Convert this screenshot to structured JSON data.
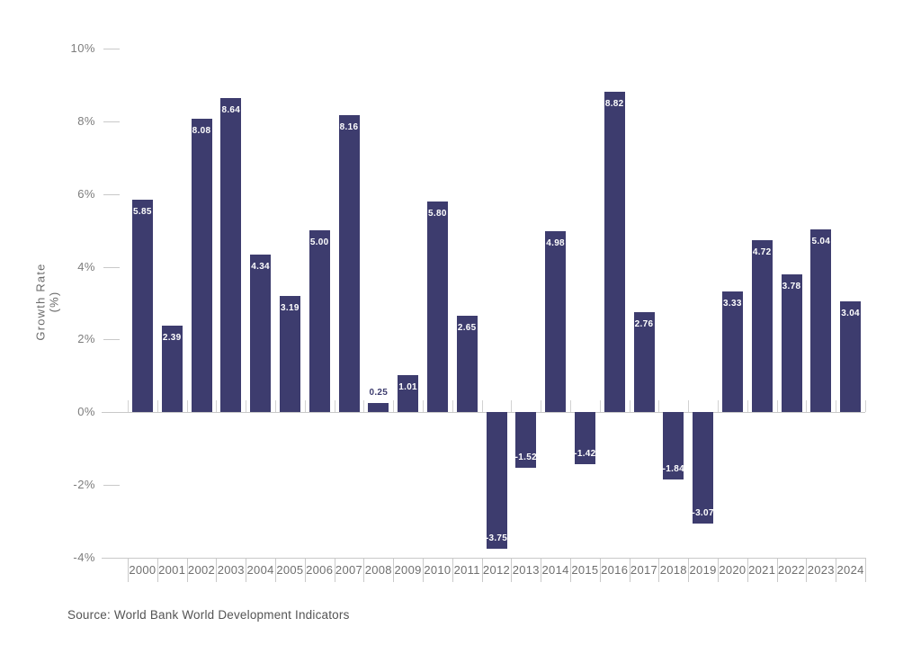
{
  "chart_data": {
    "type": "bar",
    "title": "",
    "xlabel": "",
    "ylabel": "Growth Rate (%)",
    "categories": [
      "2000",
      "2001",
      "2002",
      "2003",
      "2004",
      "2005",
      "2006",
      "2007",
      "2008",
      "2009",
      "2010",
      "2011",
      "2012",
      "2013",
      "2014",
      "2015",
      "2016",
      "2017",
      "2018",
      "2019",
      "2020",
      "2021",
      "2022",
      "2023",
      "2024"
    ],
    "values": [
      5.85,
      2.39,
      8.08,
      8.64,
      4.34,
      3.19,
      5.0,
      8.16,
      0.25,
      1.01,
      5.8,
      2.65,
      -3.75,
      -1.52,
      4.98,
      -1.42,
      8.82,
      2.76,
      -1.84,
      -3.07,
      3.33,
      4.72,
      3.78,
      5.04,
      3.04
    ],
    "value_labels": [
      "5.85",
      "2.39",
      "8.08",
      "8.64",
      "4.34",
      "3.19",
      "5.00",
      "8.16",
      "0.25",
      "1.01",
      "5.80",
      "2.65",
      "-3.75",
      "-1.52",
      "4.98",
      "-1.42",
      "8.82",
      "2.76",
      "-1.84",
      "-3.07",
      "3.33",
      "4.72",
      "3.78",
      "5.04",
      "3.04"
    ],
    "ylim": [
      -4,
      10
    ],
    "yticks": [
      {
        "value": 10,
        "label": "10%"
      },
      {
        "value": 8,
        "label": "8%"
      },
      {
        "value": 6,
        "label": "6%"
      },
      {
        "value": 4,
        "label": "4%"
      },
      {
        "value": 2,
        "label": "2%"
      },
      {
        "value": 0,
        "label": "0%"
      },
      {
        "value": -2,
        "label": "-2%"
      },
      {
        "value": -4,
        "label": "-4%"
      }
    ],
    "bar_color": "#3d3c6e",
    "label_color_inside": "#ffffff",
    "grid": false,
    "legend": null
  },
  "source_note": "Source: World Bank World Development Indicators"
}
